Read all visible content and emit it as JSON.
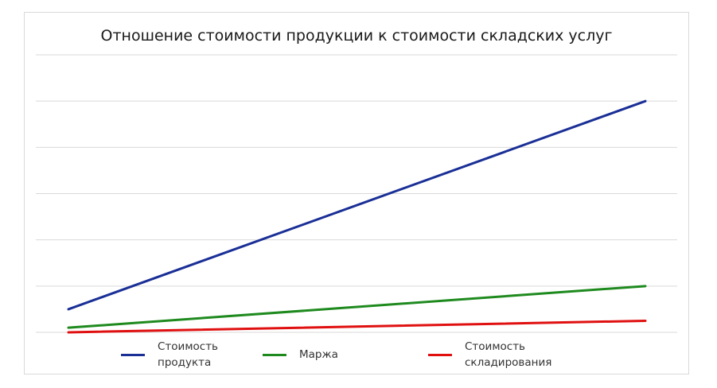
{
  "chart_data": {
    "type": "line",
    "title": "Отношение стоимости продукции к стоимости складских услуг",
    "xlabel": "",
    "ylabel": "",
    "x": [
      0,
      1
    ],
    "ylim": [
      0,
      6
    ],
    "grid": true,
    "legend_placement": "bottom",
    "series": [
      {
        "name": "Стоимость\nпродукта",
        "color": "#1a2f96",
        "values": [
          0.5,
          5.0
        ]
      },
      {
        "name": "Маржа",
        "color": "#1e8a1e",
        "values": [
          0.1,
          1.0
        ]
      },
      {
        "name": "Стоимость\nскладирования",
        "color": "#e01010",
        "values": [
          0.0,
          0.25
        ]
      }
    ]
  }
}
